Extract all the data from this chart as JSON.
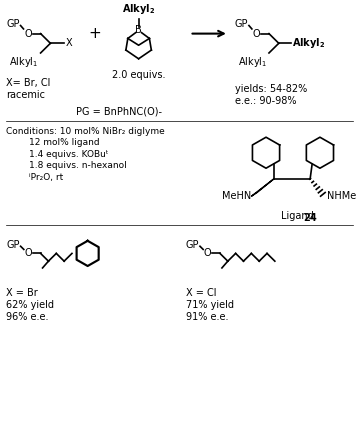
{
  "bg_color": "#ffffff",
  "figsize": [
    3.64,
    4.32
  ],
  "dpi": 100,
  "conditions": {
    "line1": "Conditions: 10 mol% NiBr₂ diglyme",
    "line2": "12 mol% ligand",
    "line3": "1.4 equivs. KOBuᵗ",
    "line4": "1.8 equivs. n-hexanol",
    "line5": "ⁱPr₂O, rt"
  }
}
